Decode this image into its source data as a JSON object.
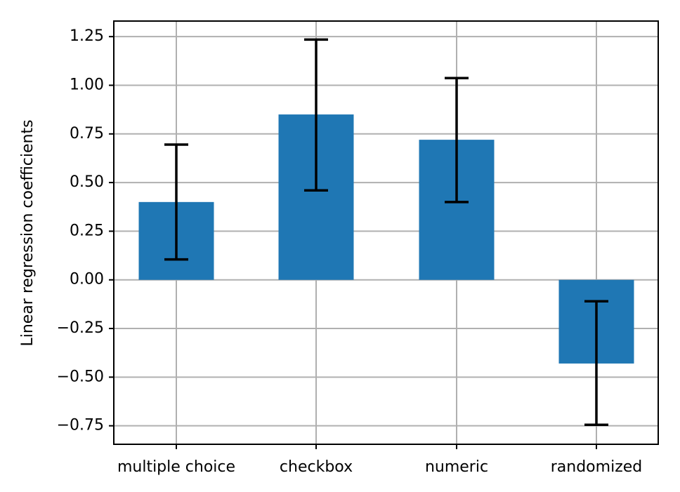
{
  "chart_data": {
    "type": "bar",
    "categories": [
      "multiple choice",
      "checkbox",
      "numeric",
      "randomized"
    ],
    "values": [
      0.4,
      0.85,
      0.72,
      -0.43
    ],
    "error_low": [
      0.105,
      0.46,
      0.4,
      -0.745
    ],
    "error_high": [
      0.695,
      1.235,
      1.037,
      -0.11
    ],
    "title": "",
    "xlabel": "",
    "ylabel": "Linear regression coefficients",
    "ylim": [
      -0.845,
      1.33
    ],
    "yticks": [
      -0.75,
      -0.5,
      -0.25,
      0.0,
      0.25,
      0.5,
      0.75,
      1.0,
      1.25
    ],
    "ytick_labels": [
      "−0.75",
      "−0.50",
      "−0.25",
      "0.00",
      "0.25",
      "0.50",
      "0.75",
      "1.00",
      "1.25"
    ],
    "grid": true,
    "bar_color": "#1f77b4",
    "error_bar_color": "#000000",
    "grid_color": "#b0b0b0"
  }
}
